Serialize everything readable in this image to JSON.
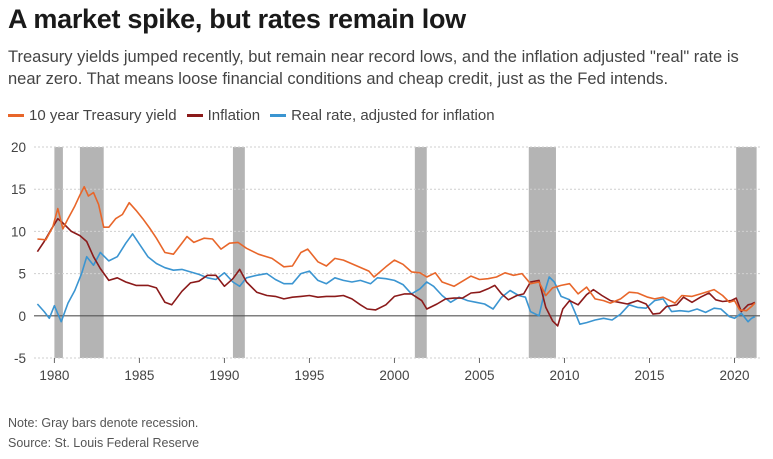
{
  "title": "A market spike, but rates remain low",
  "subtitle": "Treasury yields jumped recently, but remain near record lows, and the inflation adjusted \"real\" rate is near zero. That means loose financial conditions and cheap credit, just as the Fed intends.",
  "note": "Note: Gray bars denote recession.",
  "source": "Source: St. Louis Federal Reserve",
  "chart_data": {
    "type": "line",
    "title": "A market spike, but rates remain low",
    "xlabel": "",
    "ylabel": "",
    "xlim": [
      1978.8,
      2021.5
    ],
    "ylim": [
      -5,
      20
    ],
    "grid": true,
    "legend_position": "top-left",
    "yticks": [
      -5,
      0,
      5,
      10,
      15,
      20
    ],
    "xticks": [
      1980,
      1985,
      1990,
      1995,
      2000,
      2005,
      2010,
      2015,
      2020
    ],
    "recessions": [
      [
        1980.0,
        1980.5
      ],
      [
        1981.5,
        1982.9
      ],
      [
        1990.5,
        1991.2
      ],
      [
        2001.2,
        2001.9
      ],
      [
        2007.9,
        2009.5
      ],
      [
        2020.1,
        2021.3
      ]
    ],
    "series": [
      {
        "name": "10 year Treasury yield",
        "color": "#e8662a",
        "points": [
          [
            1979.0,
            9.1
          ],
          [
            1979.5,
            9.0
          ],
          [
            1979.9,
            10.5
          ],
          [
            1980.2,
            12.7
          ],
          [
            1980.5,
            10.3
          ],
          [
            1980.8,
            11.5
          ],
          [
            1981.2,
            13.0
          ],
          [
            1981.5,
            14.3
          ],
          [
            1981.75,
            15.3
          ],
          [
            1982.0,
            14.2
          ],
          [
            1982.3,
            14.6
          ],
          [
            1982.6,
            13.2
          ],
          [
            1982.9,
            10.5
          ],
          [
            1983.2,
            10.5
          ],
          [
            1983.6,
            11.5
          ],
          [
            1984.0,
            12.0
          ],
          [
            1984.4,
            13.4
          ],
          [
            1984.8,
            12.5
          ],
          [
            1985.2,
            11.5
          ],
          [
            1985.6,
            10.4
          ],
          [
            1986.0,
            9.2
          ],
          [
            1986.5,
            7.5
          ],
          [
            1987.0,
            7.3
          ],
          [
            1987.5,
            8.6
          ],
          [
            1987.8,
            9.4
          ],
          [
            1988.2,
            8.7
          ],
          [
            1988.8,
            9.2
          ],
          [
            1989.3,
            9.1
          ],
          [
            1989.8,
            7.9
          ],
          [
            1990.3,
            8.6
          ],
          [
            1990.8,
            8.7
          ],
          [
            1991.3,
            8.0
          ],
          [
            1992.0,
            7.3
          ],
          [
            1992.8,
            6.8
          ],
          [
            1993.5,
            5.8
          ],
          [
            1994.0,
            5.9
          ],
          [
            1994.5,
            7.5
          ],
          [
            1994.9,
            7.9
          ],
          [
            1995.5,
            6.4
          ],
          [
            1996.0,
            5.9
          ],
          [
            1996.5,
            6.8
          ],
          [
            1997.0,
            6.6
          ],
          [
            1997.8,
            5.9
          ],
          [
            1998.5,
            5.3
          ],
          [
            1998.8,
            4.6
          ],
          [
            1999.5,
            5.8
          ],
          [
            2000.0,
            6.6
          ],
          [
            2000.5,
            6.1
          ],
          [
            2001.0,
            5.2
          ],
          [
            2001.5,
            5.1
          ],
          [
            2001.9,
            4.6
          ],
          [
            2002.4,
            5.1
          ],
          [
            2002.8,
            4.0
          ],
          [
            2003.5,
            3.5
          ],
          [
            2004.0,
            4.1
          ],
          [
            2004.5,
            4.7
          ],
          [
            2005.0,
            4.3
          ],
          [
            2005.5,
            4.4
          ],
          [
            2006.0,
            4.6
          ],
          [
            2006.5,
            5.1
          ],
          [
            2007.0,
            4.8
          ],
          [
            2007.5,
            5.0
          ],
          [
            2008.0,
            3.8
          ],
          [
            2008.5,
            4.0
          ],
          [
            2008.9,
            2.4
          ],
          [
            2009.3,
            3.3
          ],
          [
            2009.8,
            3.6
          ],
          [
            2010.3,
            3.8
          ],
          [
            2010.8,
            2.6
          ],
          [
            2011.3,
            3.4
          ],
          [
            2011.8,
            2.0
          ],
          [
            2012.3,
            1.8
          ],
          [
            2012.7,
            1.5
          ],
          [
            2013.3,
            2.0
          ],
          [
            2013.8,
            2.8
          ],
          [
            2014.3,
            2.7
          ],
          [
            2014.9,
            2.2
          ],
          [
            2015.3,
            2.0
          ],
          [
            2015.8,
            2.2
          ],
          [
            2016.5,
            1.5
          ],
          [
            2016.9,
            2.4
          ],
          [
            2017.5,
            2.3
          ],
          [
            2018.0,
            2.6
          ],
          [
            2018.8,
            3.1
          ],
          [
            2019.3,
            2.4
          ],
          [
            2019.7,
            1.6
          ],
          [
            2020.0,
            1.8
          ],
          [
            2020.3,
            0.7
          ],
          [
            2020.7,
            0.6
          ],
          [
            2021.0,
            1.1
          ],
          [
            2021.2,
            1.5
          ]
        ]
      },
      {
        "name": "Inflation",
        "color": "#8b1a1a",
        "points": [
          [
            1979.0,
            7.6
          ],
          [
            1979.4,
            8.8
          ],
          [
            1979.8,
            10.2
          ],
          [
            1980.2,
            11.5
          ],
          [
            1980.5,
            11.0
          ],
          [
            1981.0,
            10.0
          ],
          [
            1981.5,
            9.5
          ],
          [
            1981.9,
            8.8
          ],
          [
            1982.3,
            7.0
          ],
          [
            1982.7,
            5.6
          ],
          [
            1983.2,
            4.2
          ],
          [
            1983.7,
            4.5
          ],
          [
            1984.2,
            4.0
          ],
          [
            1984.8,
            3.6
          ],
          [
            1985.5,
            3.6
          ],
          [
            1986.0,
            3.3
          ],
          [
            1986.5,
            1.6
          ],
          [
            1986.9,
            1.3
          ],
          [
            1987.5,
            2.9
          ],
          [
            1988.0,
            3.9
          ],
          [
            1988.5,
            4.1
          ],
          [
            1989.0,
            4.8
          ],
          [
            1989.5,
            4.8
          ],
          [
            1990.0,
            3.5
          ],
          [
            1990.5,
            4.4
          ],
          [
            1990.9,
            5.5
          ],
          [
            1991.3,
            4.0
          ],
          [
            1991.9,
            2.8
          ],
          [
            1992.5,
            2.4
          ],
          [
            1993.0,
            2.3
          ],
          [
            1993.5,
            2.0
          ],
          [
            1994.0,
            2.2
          ],
          [
            1994.5,
            2.3
          ],
          [
            1995.0,
            2.4
          ],
          [
            1995.5,
            2.2
          ],
          [
            1996.0,
            2.3
          ],
          [
            1996.5,
            2.3
          ],
          [
            1997.0,
            2.4
          ],
          [
            1997.5,
            2.0
          ],
          [
            1998.0,
            1.3
          ],
          [
            1998.4,
            0.8
          ],
          [
            1998.9,
            0.7
          ],
          [
            1999.5,
            1.3
          ],
          [
            2000.0,
            2.3
          ],
          [
            2000.6,
            2.6
          ],
          [
            2001.0,
            2.6
          ],
          [
            2001.6,
            1.8
          ],
          [
            2001.9,
            0.8
          ],
          [
            2002.5,
            1.4
          ],
          [
            2003.0,
            2.0
          ],
          [
            2003.5,
            2.1
          ],
          [
            2004.0,
            2.1
          ],
          [
            2004.5,
            2.7
          ],
          [
            2005.0,
            2.8
          ],
          [
            2005.5,
            3.2
          ],
          [
            2005.9,
            3.6
          ],
          [
            2006.3,
            2.6
          ],
          [
            2006.7,
            1.9
          ],
          [
            2007.2,
            2.4
          ],
          [
            2007.6,
            2.6
          ],
          [
            2008.0,
            4.0
          ],
          [
            2008.5,
            4.2
          ],
          [
            2008.9,
            1.0
          ],
          [
            2009.3,
            -0.6
          ],
          [
            2009.6,
            -1.2
          ],
          [
            2009.9,
            0.8
          ],
          [
            2010.3,
            1.8
          ],
          [
            2010.8,
            1.3
          ],
          [
            2011.3,
            2.5
          ],
          [
            2011.7,
            3.1
          ],
          [
            2012.2,
            2.4
          ],
          [
            2012.7,
            1.8
          ],
          [
            2013.2,
            1.6
          ],
          [
            2013.7,
            1.4
          ],
          [
            2014.3,
            1.8
          ],
          [
            2014.8,
            1.4
          ],
          [
            2015.2,
            0.2
          ],
          [
            2015.6,
            0.3
          ],
          [
            2016.0,
            1.1
          ],
          [
            2016.6,
            1.3
          ],
          [
            2017.0,
            2.2
          ],
          [
            2017.5,
            1.6
          ],
          [
            2018.0,
            2.2
          ],
          [
            2018.5,
            2.7
          ],
          [
            2018.9,
            1.9
          ],
          [
            2019.3,
            1.7
          ],
          [
            2019.8,
            1.8
          ],
          [
            2020.1,
            2.1
          ],
          [
            2020.4,
            0.5
          ],
          [
            2020.8,
            1.3
          ],
          [
            2021.0,
            1.4
          ],
          [
            2021.2,
            1.6
          ]
        ]
      },
      {
        "name": "Real rate, adjusted for inflation",
        "color": "#3b95d1",
        "points": [
          [
            1979.0,
            1.4
          ],
          [
            1979.4,
            0.5
          ],
          [
            1979.7,
            -0.3
          ],
          [
            1980.0,
            1.2
          ],
          [
            1980.4,
            -0.7
          ],
          [
            1980.8,
            1.5
          ],
          [
            1981.2,
            3.0
          ],
          [
            1981.6,
            5.0
          ],
          [
            1981.9,
            7.0
          ],
          [
            1982.3,
            6.0
          ],
          [
            1982.7,
            7.5
          ],
          [
            1983.2,
            6.5
          ],
          [
            1983.7,
            7.0
          ],
          [
            1984.2,
            8.6
          ],
          [
            1984.6,
            9.7
          ],
          [
            1985.0,
            8.5
          ],
          [
            1985.5,
            7.0
          ],
          [
            1986.0,
            6.2
          ],
          [
            1986.5,
            5.7
          ],
          [
            1987.0,
            5.4
          ],
          [
            1987.5,
            5.5
          ],
          [
            1988.0,
            5.2
          ],
          [
            1988.5,
            4.9
          ],
          [
            1989.0,
            4.5
          ],
          [
            1989.5,
            4.3
          ],
          [
            1990.0,
            5.1
          ],
          [
            1990.5,
            4.0
          ],
          [
            1990.9,
            3.5
          ],
          [
            1991.3,
            4.5
          ],
          [
            1991.9,
            4.8
          ],
          [
            1992.5,
            5.0
          ],
          [
            1993.0,
            4.3
          ],
          [
            1993.5,
            3.8
          ],
          [
            1994.0,
            3.8
          ],
          [
            1994.5,
            5.0
          ],
          [
            1995.0,
            5.3
          ],
          [
            1995.5,
            4.2
          ],
          [
            1996.0,
            3.8
          ],
          [
            1996.5,
            4.5
          ],
          [
            1997.0,
            4.2
          ],
          [
            1997.5,
            4.0
          ],
          [
            1998.0,
            4.2
          ],
          [
            1998.6,
            3.8
          ],
          [
            1999.0,
            4.5
          ],
          [
            1999.5,
            4.4
          ],
          [
            2000.0,
            4.2
          ],
          [
            2000.5,
            3.7
          ],
          [
            2001.0,
            2.6
          ],
          [
            2001.5,
            3.2
          ],
          [
            2001.9,
            4.0
          ],
          [
            2002.3,
            3.5
          ],
          [
            2002.8,
            2.4
          ],
          [
            2003.3,
            1.6
          ],
          [
            2003.8,
            2.2
          ],
          [
            2004.3,
            1.8
          ],
          [
            2004.8,
            1.6
          ],
          [
            2005.3,
            1.4
          ],
          [
            2005.8,
            0.8
          ],
          [
            2006.3,
            2.2
          ],
          [
            2006.8,
            3.0
          ],
          [
            2007.3,
            2.4
          ],
          [
            2007.7,
            2.2
          ],
          [
            2008.0,
            0.5
          ],
          [
            2008.5,
            0.0
          ],
          [
            2008.8,
            2.6
          ],
          [
            2009.1,
            4.6
          ],
          [
            2009.4,
            4.0
          ],
          [
            2009.8,
            2.3
          ],
          [
            2010.3,
            1.9
          ],
          [
            2010.6,
            0.5
          ],
          [
            2010.9,
            -1.0
          ],
          [
            2011.3,
            -0.8
          ],
          [
            2011.8,
            -0.5
          ],
          [
            2012.3,
            -0.3
          ],
          [
            2012.8,
            -0.5
          ],
          [
            2013.3,
            0.2
          ],
          [
            2013.8,
            1.3
          ],
          [
            2014.3,
            1.0
          ],
          [
            2014.8,
            0.9
          ],
          [
            2015.3,
            1.8
          ],
          [
            2015.8,
            2.0
          ],
          [
            2016.3,
            0.5
          ],
          [
            2016.8,
            0.6
          ],
          [
            2017.3,
            0.5
          ],
          [
            2017.8,
            0.8
          ],
          [
            2018.3,
            0.4
          ],
          [
            2018.8,
            0.9
          ],
          [
            2019.2,
            0.8
          ],
          [
            2019.7,
            -0.1
          ],
          [
            2020.0,
            -0.3
          ],
          [
            2020.4,
            0.3
          ],
          [
            2020.8,
            -0.7
          ],
          [
            2021.0,
            -0.3
          ],
          [
            2021.2,
            -0.1
          ]
        ]
      }
    ]
  }
}
